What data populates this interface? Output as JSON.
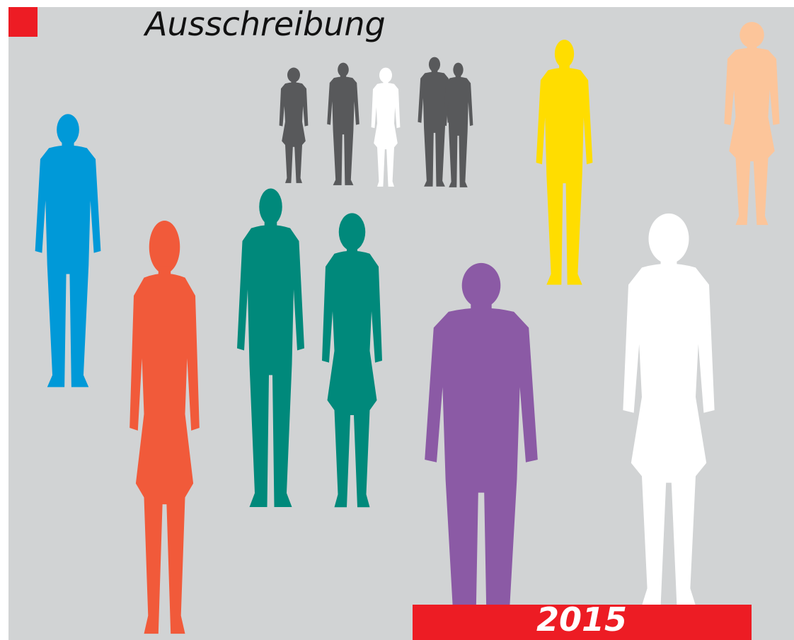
{
  "title": "Ausschreibung",
  "year": "2015"
}
